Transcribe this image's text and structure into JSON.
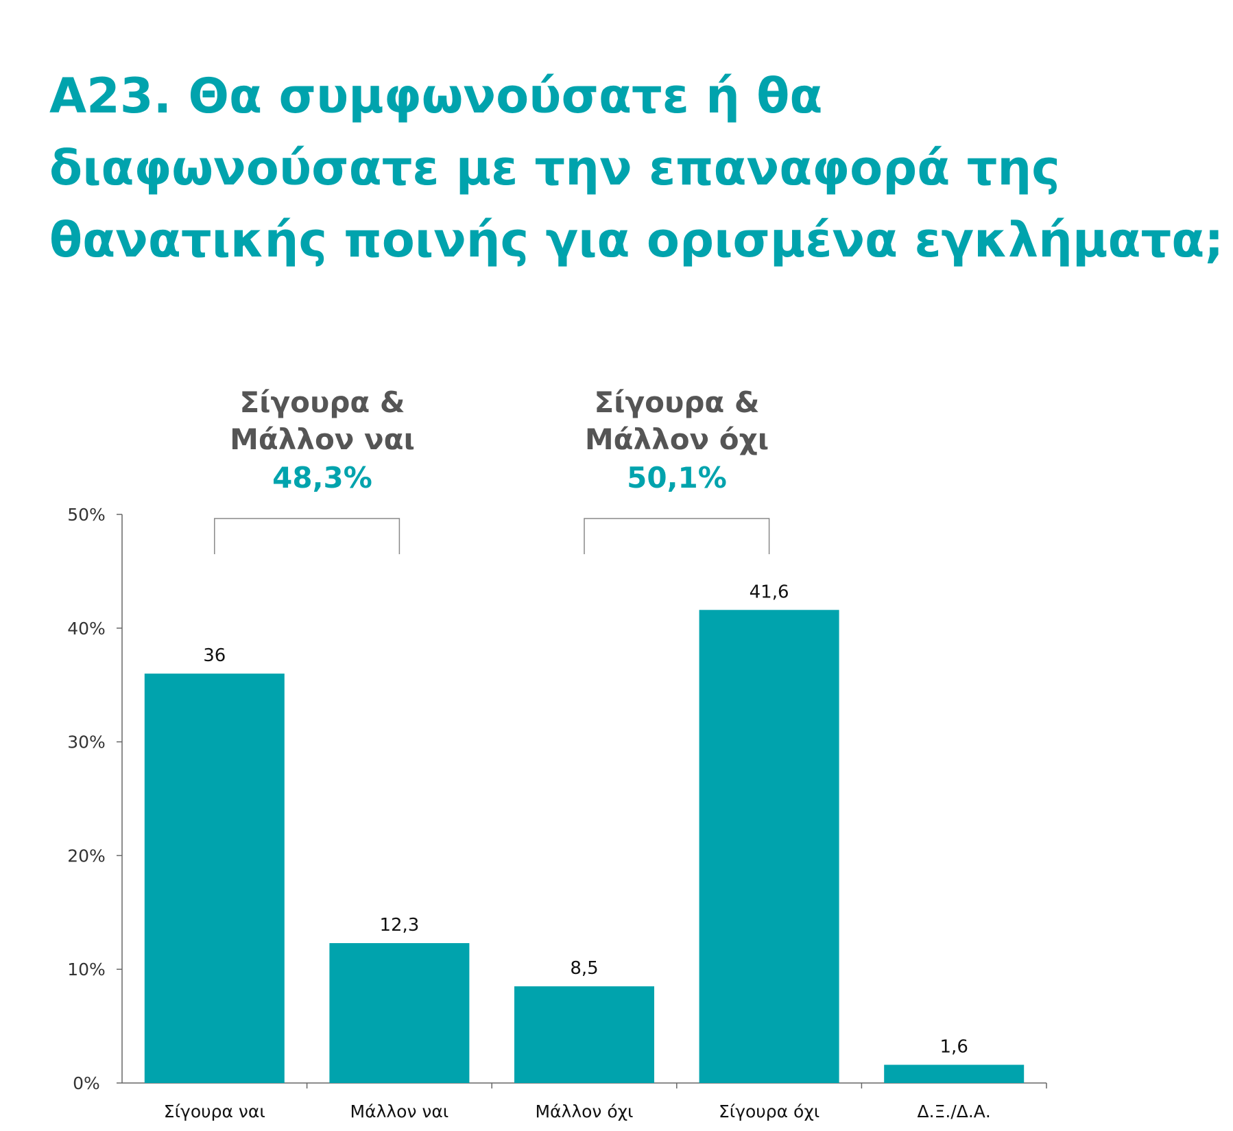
{
  "title": {
    "lines": [
      "Α23. Θα συμφωνούσατε ή θα",
      "διαφωνούσατε με την επαναφορά της",
      "θανατικής ποινής για ορισμένα εγκλήματα;"
    ]
  },
  "groups": [
    {
      "lines": [
        "Σίγουρα &",
        "Μάλλον ναι"
      ],
      "total": "48,3%",
      "spans": [
        0,
        1
      ]
    },
    {
      "lines": [
        "Σίγουρα &",
        "Μάλλον όχι"
      ],
      "total": "50,1%",
      "spans": [
        2,
        3
      ]
    }
  ],
  "colors": {
    "accent": "#00A3AD",
    "group_text": "#555555",
    "axis": "#666666",
    "label": "#111111"
  },
  "chart_data": {
    "type": "bar",
    "categories": [
      "Σίγουρα ναι",
      "Μάλλον ναι",
      "Μάλλον όχι",
      "Σίγουρα όχι",
      "Δ.Ξ./Δ.Α."
    ],
    "values": [
      36,
      12.3,
      8.5,
      41.6,
      1.6
    ],
    "value_labels": [
      "36",
      "12,3",
      "8,5",
      "41,6",
      "1,6"
    ],
    "yticks": [
      0,
      10,
      20,
      30,
      40,
      50
    ],
    "ytick_labels": [
      "0%",
      "10%",
      "20%",
      "30%",
      "40%",
      "50%"
    ],
    "ylim": [
      0,
      50
    ],
    "title": "",
    "xlabel": "",
    "ylabel": "",
    "grid": false
  }
}
